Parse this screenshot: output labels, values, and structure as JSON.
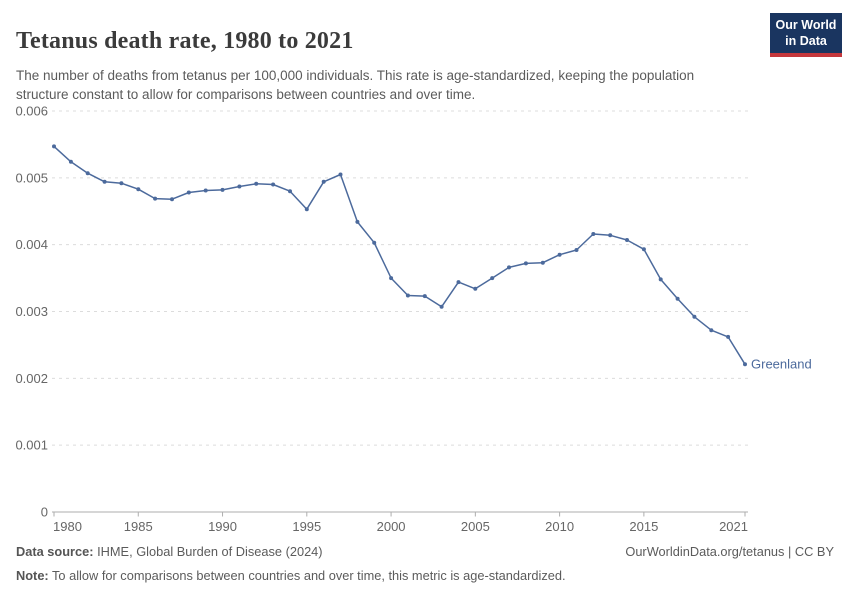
{
  "header": {
    "title": "Tetanus death rate, 1980 to 2021",
    "subtitle": "The number of deaths from tetanus per 100,000 individuals. This rate is age-standardized, keeping the population structure constant to allow for comparisons between countries and over time.",
    "logo": {
      "line1": "Our World",
      "line2": "in Data",
      "bg_color": "#1a3560",
      "accent_color": "#c5373c"
    }
  },
  "chart_data": {
    "type": "line",
    "title": "Tetanus death rate, 1980 to 2021",
    "xlabel": "",
    "ylabel": "",
    "ylim": [
      0,
      0.006
    ],
    "grid": "horizontal-dashed",
    "legend_position": "end-of-line-label",
    "x": [
      1980,
      1981,
      1982,
      1983,
      1984,
      1985,
      1986,
      1987,
      1988,
      1989,
      1990,
      1991,
      1992,
      1993,
      1994,
      1995,
      1996,
      1997,
      1998,
      1999,
      2000,
      2001,
      2002,
      2003,
      2004,
      2005,
      2006,
      2007,
      2008,
      2009,
      2010,
      2011,
      2012,
      2013,
      2014,
      2015,
      2016,
      2017,
      2018,
      2019,
      2020,
      2021
    ],
    "series": [
      {
        "name": "Greenland",
        "color": "#4c6a9c",
        "values": [
          0.00547,
          0.00524,
          0.00507,
          0.00494,
          0.00492,
          0.00483,
          0.00469,
          0.00468,
          0.00478,
          0.00481,
          0.00482,
          0.00487,
          0.00491,
          0.0049,
          0.0048,
          0.00453,
          0.00494,
          0.00505,
          0.00434,
          0.00403,
          0.0035,
          0.00324,
          0.00323,
          0.00307,
          0.00344,
          0.00334,
          0.0035,
          0.00366,
          0.00372,
          0.00373,
          0.00385,
          0.00392,
          0.00416,
          0.00414,
          0.00407,
          0.00393,
          0.00348,
          0.00319,
          0.00292,
          0.00272,
          0.00262,
          0.00221
        ]
      }
    ],
    "yticks": [
      {
        "value": 0,
        "label": "0"
      },
      {
        "value": 0.001,
        "label": "0.001"
      },
      {
        "value": 0.002,
        "label": "0.002"
      },
      {
        "value": 0.003,
        "label": "0.003"
      },
      {
        "value": 0.004,
        "label": "0.004"
      },
      {
        "value": 0.005,
        "label": "0.005"
      },
      {
        "value": 0.006,
        "label": "0.006"
      }
    ],
    "xticks": [
      {
        "value": 1980,
        "label": "1980"
      },
      {
        "value": 1985,
        "label": "1985"
      },
      {
        "value": 1990,
        "label": "1990"
      },
      {
        "value": 1995,
        "label": "1995"
      },
      {
        "value": 2000,
        "label": "2000"
      },
      {
        "value": 2005,
        "label": "2005"
      },
      {
        "value": 2010,
        "label": "2010"
      },
      {
        "value": 2015,
        "label": "2015"
      },
      {
        "value": 2021,
        "label": "2021"
      }
    ],
    "colors": {
      "gridline": "#dcdcdc",
      "axis": "#aeaeae",
      "tick_label": "#666666"
    }
  },
  "footer": {
    "datasource_label": "Data source:",
    "datasource_value": " IHME, Global Burden of Disease (2024)",
    "rights": "OurWorldinData.org/tetanus | CC BY",
    "note_label": "Note:",
    "note_value": " To allow for comparisons between countries and over time, this metric is age-standardized."
  }
}
